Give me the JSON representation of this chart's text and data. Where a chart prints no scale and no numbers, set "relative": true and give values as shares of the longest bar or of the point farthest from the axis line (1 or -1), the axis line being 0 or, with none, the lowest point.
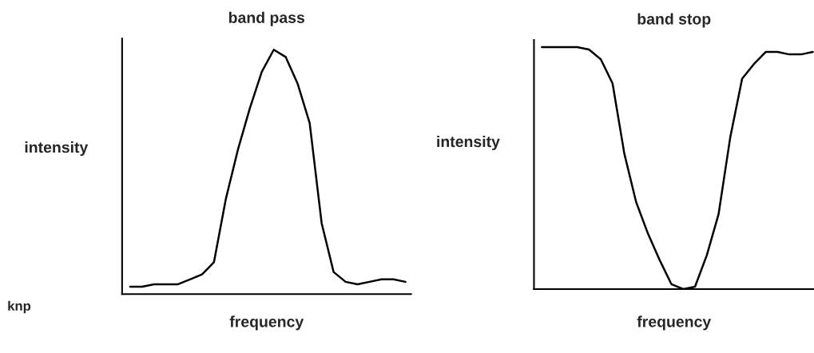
{
  "chart_data": [
    {
      "type": "line",
      "title": "band pass",
      "xlabel": "frequency",
      "ylabel": "intensity",
      "relative": true,
      "categories": [
        null,
        null,
        null,
        null,
        null,
        null,
        null,
        null,
        null,
        null,
        null,
        null,
        null,
        null,
        null,
        null,
        null,
        null,
        null,
        null,
        null,
        null,
        null,
        null
      ],
      "series": [
        {
          "color": "#000000",
          "values": [
            0.03,
            0.03,
            0.04,
            0.04,
            0.04,
            0.06,
            0.08,
            0.13,
            0.39,
            0.59,
            0.76,
            0.91,
            1.0,
            0.97,
            0.86,
            0.7,
            0.29,
            0.09,
            0.05,
            0.04,
            0.05,
            0.06,
            0.06,
            0.05
          ]
        }
      ],
      "annotations": [
        "knp"
      ]
    },
    {
      "type": "line",
      "title": "band stop",
      "xlabel": "frequency",
      "ylabel": "intensity",
      "relative": true,
      "categories": [
        null,
        null,
        null,
        null,
        null,
        null,
        null,
        null,
        null,
        null,
        null,
        null,
        null,
        null,
        null,
        null,
        null,
        null,
        null,
        null,
        null,
        null,
        null,
        null
      ],
      "series": [
        {
          "color": "#000000",
          "values": [
            1.0,
            1.0,
            1.0,
            1.0,
            0.99,
            0.95,
            0.85,
            0.56,
            0.36,
            0.23,
            0.12,
            0.02,
            0.0,
            0.01,
            0.14,
            0.31,
            0.63,
            0.87,
            0.93,
            0.98,
            0.98,
            0.97,
            0.97,
            0.98
          ]
        }
      ]
    }
  ]
}
